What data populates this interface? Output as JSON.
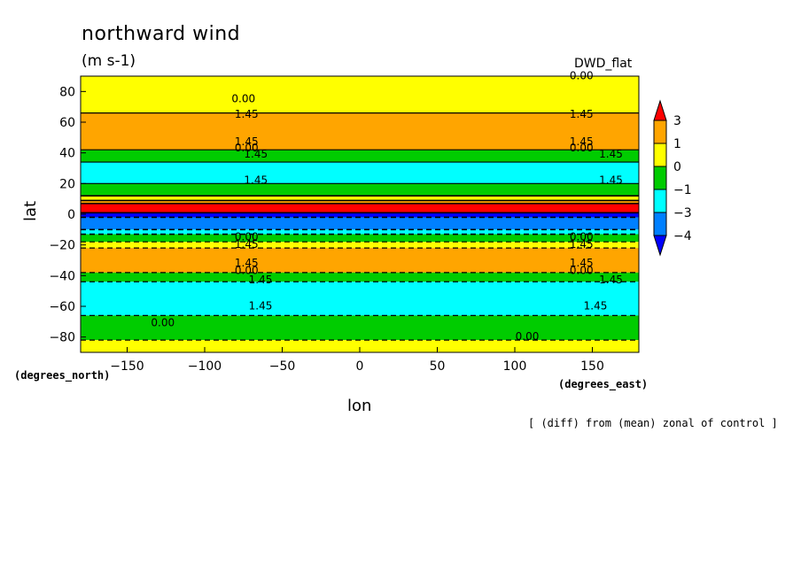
{
  "title": "northward wind",
  "units": "(m s-1)",
  "run_label": "DWD_flat",
  "footnote": "[ (diff) from (mean) zonal of control ]",
  "axis_unit_y": "(degrees_north)",
  "axis_unit_x": "(degrees_east)",
  "chart_data": {
    "type": "heatmap",
    "title": "northward wind",
    "xlabel": "lon",
    "ylabel": "lat",
    "xlim": [
      -180,
      180
    ],
    "ylim": [
      -90,
      90
    ],
    "xticks": [
      -150,
      -100,
      -50,
      0,
      50,
      100,
      150
    ],
    "yticks": [
      -80,
      -60,
      -40,
      -20,
      0,
      20,
      40,
      60,
      80
    ],
    "colorbar": {
      "levels": [
        "3",
        "1",
        "0",
        "−1",
        "−3",
        "−4"
      ],
      "colors": [
        "#ff0000",
        "#ffa500",
        "#ffff00",
        "#00cc00",
        "#00ffff",
        "#0080ff",
        "#0000ff"
      ]
    },
    "bands": [
      {
        "lat_top": 90,
        "lat_bottom": 66,
        "color": "#ffff00"
      },
      {
        "lat_top": 66,
        "lat_bottom": 42,
        "color": "#ffa500"
      },
      {
        "lat_top": 42,
        "lat_bottom": 34,
        "color": "#00cc00"
      },
      {
        "lat_top": 34,
        "lat_bottom": 20,
        "color": "#00ffff"
      },
      {
        "lat_top": 20,
        "lat_bottom": 12,
        "color": "#00cc00"
      },
      {
        "lat_top": 12,
        "lat_bottom": 9,
        "color": "#ffff00"
      },
      {
        "lat_top": 9,
        "lat_bottom": 7,
        "color": "#ffa500"
      },
      {
        "lat_top": 7,
        "lat_bottom": 1,
        "color": "#ff0000"
      },
      {
        "lat_top": 1,
        "lat_bottom": -2,
        "color": "#0000ff"
      },
      {
        "lat_top": -2,
        "lat_bottom": -10,
        "color": "#0080ff"
      },
      {
        "lat_top": -10,
        "lat_bottom": -13,
        "color": "#00ffff"
      },
      {
        "lat_top": -13,
        "lat_bottom": -18,
        "color": "#00cc00"
      },
      {
        "lat_top": -18,
        "lat_bottom": -22,
        "color": "#ffff00"
      },
      {
        "lat_top": -22,
        "lat_bottom": -38,
        "color": "#ffa500"
      },
      {
        "lat_top": -38,
        "lat_bottom": -44,
        "color": "#00cc00"
      },
      {
        "lat_top": -44,
        "lat_bottom": -66,
        "color": "#00ffff"
      },
      {
        "lat_top": -66,
        "lat_bottom": -82,
        "color": "#00cc00"
      },
      {
        "lat_top": -82,
        "lat_bottom": -90,
        "color": "#ffff00"
      }
    ],
    "contour_labels": [
      {
        "text": "0.00",
        "lon": -75,
        "lat": 73
      },
      {
        "text": "1.45",
        "lon": -73,
        "lat": 63
      },
      {
        "text": "1.45",
        "lon": 143,
        "lat": 63
      },
      {
        "text": "0.00",
        "lon": 143,
        "lat": 88
      },
      {
        "text": "1.45",
        "lon": -73,
        "lat": 45
      },
      {
        "text": "0.00",
        "lon": -73,
        "lat": 41
      },
      {
        "text": "1.45",
        "lon": 143,
        "lat": 45
      },
      {
        "text": "0.00",
        "lon": 143,
        "lat": 41
      },
      {
        "text": "1.45",
        "lon": -67,
        "lat": 37
      },
      {
        "text": "1.45",
        "lon": 162,
        "lat": 37
      },
      {
        "text": "1.45",
        "lon": -67,
        "lat": 20
      },
      {
        "text": "1.45",
        "lon": 162,
        "lat": 20
      },
      {
        "text": "0.00",
        "lon": -73,
        "lat": -17
      },
      {
        "text": "0.00",
        "lon": 143,
        "lat": -17
      },
      {
        "text": "1.45",
        "lon": -73,
        "lat": -22
      },
      {
        "text": "1.45",
        "lon": 143,
        "lat": -22
      },
      {
        "text": "1.45",
        "lon": -73,
        "lat": -34
      },
      {
        "text": "0.00",
        "lon": -73,
        "lat": -39
      },
      {
        "text": "1.45",
        "lon": 143,
        "lat": -34
      },
      {
        "text": "0.00",
        "lon": 143,
        "lat": -39
      },
      {
        "text": "1.45",
        "lon": -64,
        "lat": -45
      },
      {
        "text": "1.45",
        "lon": 162,
        "lat": -45
      },
      {
        "text": "1.45",
        "lon": -64,
        "lat": -62
      },
      {
        "text": "1.45",
        "lon": 152,
        "lat": -62
      },
      {
        "text": "0.00",
        "lon": -127,
        "lat": -73
      },
      {
        "text": "0.00",
        "lon": 108,
        "lat": -82
      }
    ]
  }
}
